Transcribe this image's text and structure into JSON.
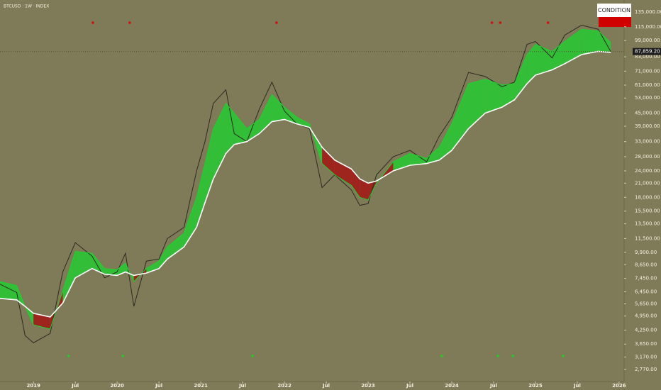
{
  "chart_data": {
    "type": "ribbon",
    "title": "BTCUSD · 1W · INDEX",
    "legend_label": "CONDITION",
    "log_y": true,
    "background": "#7f7a58",
    "x": [
      2018.6,
      2018.8,
      2018.9,
      2019.0,
      2019.2,
      2019.35,
      2019.5,
      2019.7,
      2019.85,
      2020.0,
      2020.1,
      2020.2,
      2020.35,
      2020.5,
      2020.6,
      2020.8,
      2020.95,
      2021.05,
      2021.15,
      2021.3,
      2021.4,
      2021.55,
      2021.7,
      2021.85,
      2022.0,
      2022.15,
      2022.3,
      2022.45,
      2022.6,
      2022.8,
      2022.9,
      2023.0,
      2023.1,
      2023.3,
      2023.5,
      2023.7,
      2023.85,
      2024.0,
      2024.2,
      2024.4,
      2024.6,
      2024.75,
      2024.9,
      2025.0,
      2025.2,
      2025.35,
      2025.55,
      2025.75,
      2025.9
    ],
    "series": [
      {
        "color": "#2b2b22",
        "values": [
          7000,
          6400,
          4000,
          3700,
          4100,
          8000,
          11000,
          9500,
          7500,
          8000,
          9800,
          5500,
          9000,
          9200,
          11500,
          13000,
          24000,
          33000,
          50000,
          58000,
          36000,
          33000,
          47000,
          63000,
          46000,
          40000,
          38000,
          20000,
          23000,
          19500,
          16500,
          16800,
          23000,
          28000,
          30000,
          26500,
          35000,
          43000,
          70000,
          67000,
          60000,
          63000,
          95000,
          98000,
          82000,
          105000,
          117000,
          112000,
          87859
        ]
      },
      {
        "color": "#1fd12f",
        "down_color": "#a51010",
        "values": [
          7200,
          6900,
          5500,
          4500,
          4300,
          6500,
          10000,
          9800,
          8300,
          8200,
          8800,
          7200,
          8300,
          9000,
          10500,
          12200,
          18000,
          26000,
          38000,
          50000,
          45000,
          38000,
          42000,
          55000,
          48000,
          43000,
          40000,
          26000,
          23000,
          20500,
          18000,
          17500,
          21000,
          26500,
          29000,
          27500,
          31000,
          40000,
          62000,
          65000,
          61000,
          62000,
          85000,
          95000,
          88000,
          98000,
          112000,
          110000,
          97000
        ]
      },
      {
        "color": "#ffffff",
        "values": [
          6000,
          5900,
          5500,
          5100,
          4900,
          5700,
          7500,
          8300,
          7800,
          7700,
          8000,
          7700,
          7900,
          8300,
          9200,
          10500,
          13000,
          17000,
          22000,
          29000,
          32000,
          33000,
          36000,
          41000,
          42000,
          40000,
          38500,
          31000,
          27000,
          24500,
          22000,
          21000,
          21500,
          24000,
          25500,
          26000,
          27000,
          30000,
          38000,
          45000,
          48000,
          52000,
          62000,
          68000,
          72000,
          77000,
          85000,
          88000,
          87000
        ]
      }
    ],
    "sell_signals": {
      "color": "#d01010",
      "x": [
        2019.71,
        2020.15,
        2021.905,
        2024.48,
        2024.58,
        2025.15
      ]
    },
    "buy_signals": {
      "color": "#22cc22",
      "x": [
        2019.42,
        2020.07,
        2021.62,
        2023.88,
        2024.55,
        2024.73,
        2025.33
      ]
    },
    "last_price": {
      "value": 87859.2,
      "label": "87,859.20"
    },
    "xlim": [
      2018.6,
      2026.06
    ],
    "xticks": [
      {
        "value": 2019,
        "label": "2019"
      },
      {
        "value": 2019.5,
        "label": "Jul"
      },
      {
        "value": 2020,
        "label": "2020"
      },
      {
        "value": 2020.5,
        "label": "Jul"
      },
      {
        "value": 2021,
        "label": "2021"
      },
      {
        "value": 2021.5,
        "label": "Jul"
      },
      {
        "value": 2022,
        "label": "2022"
      },
      {
        "value": 2022.5,
        "label": "Jul"
      },
      {
        "value": 2023,
        "label": "2023"
      },
      {
        "value": 2023.5,
        "label": "Jul"
      },
      {
        "value": 2024,
        "label": "2024"
      },
      {
        "value": 2024.5,
        "label": "Jul"
      },
      {
        "value": 2025,
        "label": "2025"
      },
      {
        "value": 2025.5,
        "label": "Jul"
      },
      {
        "value": 2026,
        "label": "2026"
      }
    ],
    "ylim": [
      2430,
      153900
    ],
    "yticks": [
      {
        "value": 2770,
        "label": "2,770.00"
      },
      {
        "value": 3170,
        "label": "3,170.00"
      },
      {
        "value": 3650,
        "label": "3,650.00"
      },
      {
        "value": 4250,
        "label": "4,250.00"
      },
      {
        "value": 4950,
        "label": "4,950.00"
      },
      {
        "value": 5650,
        "label": "5,650.00"
      },
      {
        "value": 6450,
        "label": "6,450.00"
      },
      {
        "value": 7450,
        "label": "7,450.00"
      },
      {
        "value": 8650,
        "label": "8,650.00"
      },
      {
        "value": 9900,
        "label": "9,900.00"
      },
      {
        "value": 11500,
        "label": "11,500.00"
      },
      {
        "value": 13500,
        "label": "13,500.00"
      },
      {
        "value": 15500,
        "label": "15,500.00"
      },
      {
        "value": 18000,
        "label": "18,000.00"
      },
      {
        "value": 21000,
        "label": "21,000.00"
      },
      {
        "value": 24000,
        "label": "24,000.00"
      },
      {
        "value": 28000,
        "label": "28,000.00"
      },
      {
        "value": 33000,
        "label": "33,000.00"
      },
      {
        "value": 39000,
        "label": "39,000.00"
      },
      {
        "value": 45000,
        "label": "45,000.00"
      },
      {
        "value": 53000,
        "label": "53,000.00"
      },
      {
        "value": 61000,
        "label": "61,000.00"
      },
      {
        "value": 71000,
        "label": "71,000.00"
      },
      {
        "value": 83000,
        "label": "83,000.00"
      },
      {
        "value": 99000,
        "label": "99,000.00"
      },
      {
        "value": 115000,
        "label": "115,000.00"
      },
      {
        "value": 135000,
        "label": "135,000.00"
      }
    ]
  }
}
